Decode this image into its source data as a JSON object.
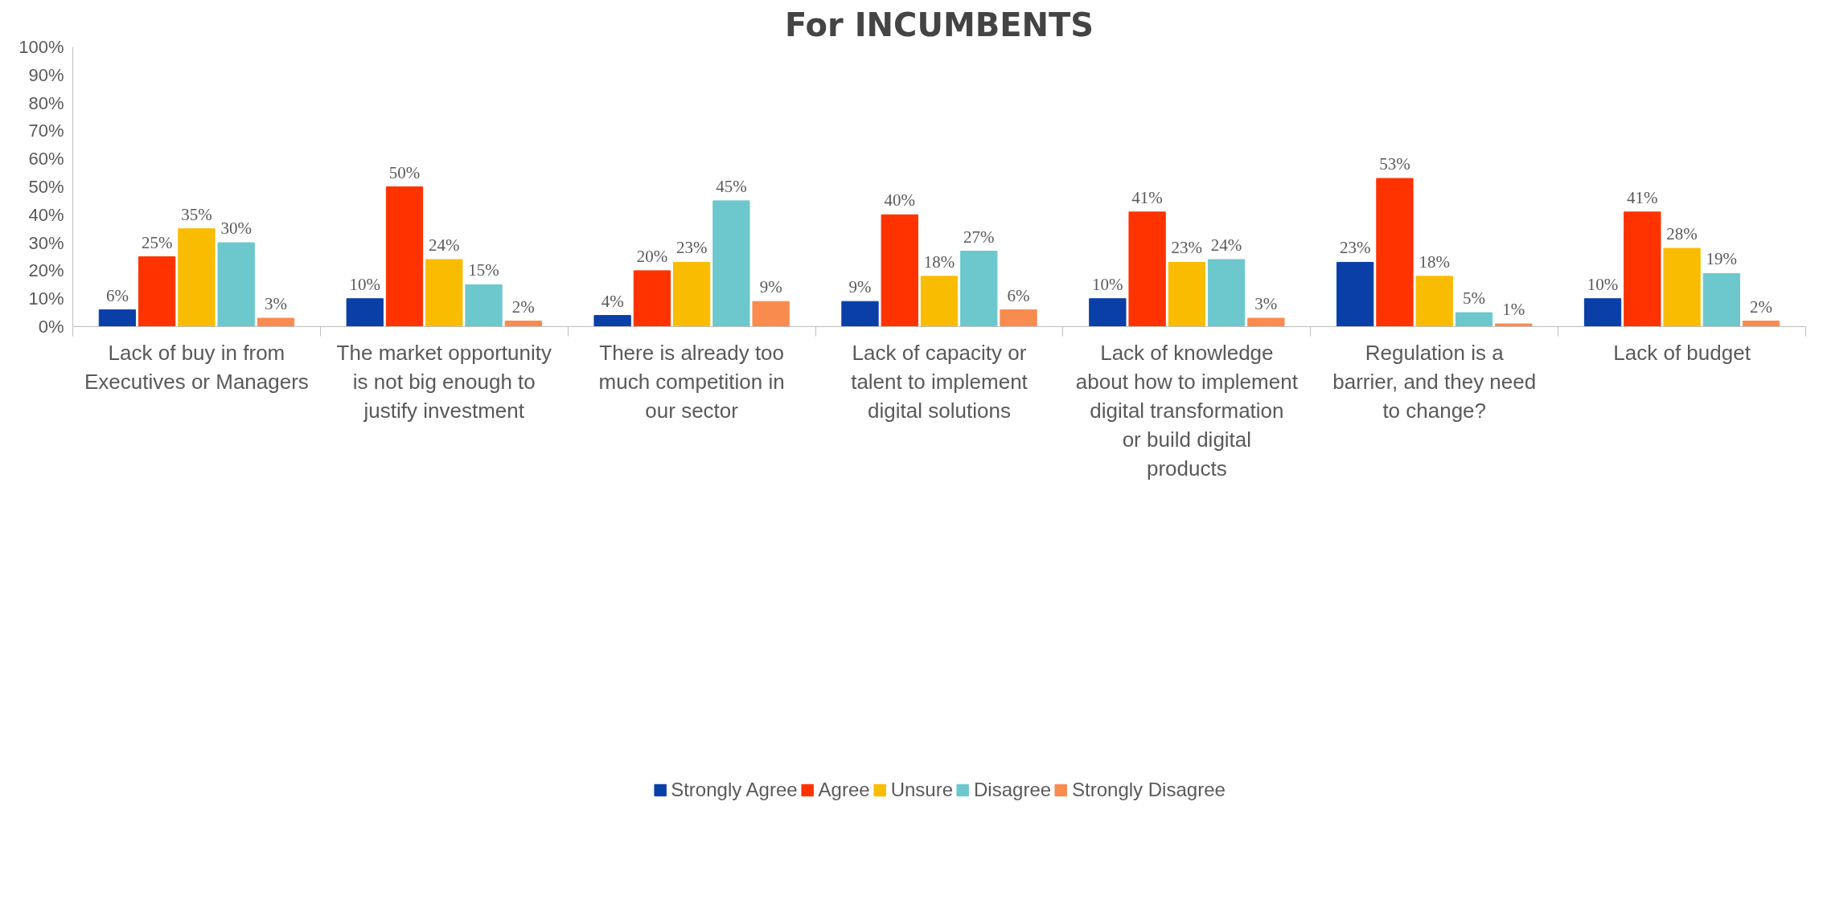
{
  "chart_data": {
    "type": "bar",
    "title": "For INCUMBENTS",
    "categories": [
      "Lack of buy in from Executives or Managers",
      "The market opportunity is not big enough to justify investment",
      "There is already too much competition in our sector",
      "Lack of capacity or talent to implement digital solutions",
      "Lack of knowledge about how to implement digital transformation or build digital products",
      "Regulation is a barrier, and they need to change?",
      "Lack of budget"
    ],
    "series": [
      {
        "name": "Strongly Agree",
        "color": "#0a3fa8",
        "values": [
          6,
          10,
          4,
          9,
          10,
          23,
          10
        ],
        "value_labels": [
          "6%",
          "10%",
          "4%",
          "9%",
          "10%",
          "23%",
          "10%"
        ]
      },
      {
        "name": "Agree",
        "color": "#ff3300",
        "values": [
          25,
          50,
          20,
          40,
          41,
          53,
          41
        ],
        "value_labels": [
          "25%",
          "50%",
          "20%",
          "40%",
          "41%",
          "53%",
          "41%"
        ]
      },
      {
        "name": "Unsure",
        "color": "#f9bc00",
        "values": [
          35,
          24,
          23,
          18,
          23,
          18,
          28
        ],
        "value_labels": [
          "35%",
          "24%",
          "23%",
          "18%",
          "23%",
          "18%",
          "28%"
        ]
      },
      {
        "name": "Disagree",
        "color": "#6cc8cc",
        "values": [
          30,
          15,
          45,
          27,
          24,
          5,
          19
        ],
        "value_labels": [
          "30%",
          "15%",
          "45%",
          "27%",
          "24%",
          "5%",
          "19%"
        ]
      },
      {
        "name": "Strongly Disagree",
        "color": "#f98b4f",
        "values": [
          3,
          2,
          9,
          6,
          3,
          1,
          2
        ],
        "value_labels": [
          "3%",
          "2%",
          "9%",
          "6%",
          "3%",
          "1%",
          "2%"
        ]
      }
    ],
    "ylim": [
      0,
      100
    ],
    "yticks": [
      {
        "value": 0,
        "label": "0%"
      },
      {
        "value": 10,
        "label": "10%"
      },
      {
        "value": 20,
        "label": "20%"
      },
      {
        "value": 30,
        "label": "30%"
      },
      {
        "value": 40,
        "label": "40%"
      },
      {
        "value": 50,
        "label": "50%"
      },
      {
        "value": 60,
        "label": "60%"
      },
      {
        "value": 70,
        "label": "70%"
      },
      {
        "value": 80,
        "label": "80%"
      },
      {
        "value": 90,
        "label": "90%"
      },
      {
        "value": 100,
        "label": "100%"
      }
    ],
    "grid": false,
    "legend": "bottom"
  }
}
